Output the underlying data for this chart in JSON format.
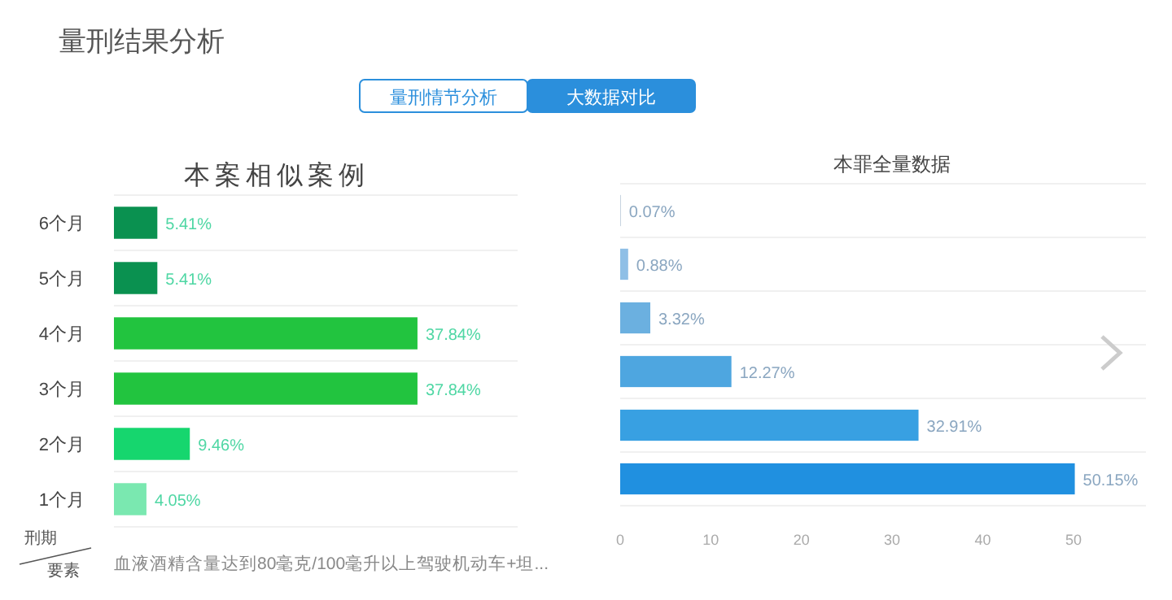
{
  "chart_data": [
    {
      "type": "other",
      "title": "量刑结果分析",
      "annotations": [
        "量刑情节分析",
        "大数据对比"
      ]
    },
    {
      "type": "bar",
      "orientation": "horizontal",
      "title": "本案相似案例",
      "ylabel": "刑期",
      "xlabel": "要素",
      "annotations": [
        "血液酒精含量达到80毫克/100毫升以上驾驶机动车+坦..."
      ],
      "categories": [
        "6个月",
        "5个月",
        "4个月",
        "3个月",
        "2个月",
        "1个月"
      ],
      "grid": "y",
      "series": [
        {
          "values": [
            5.41,
            5.41,
            37.84,
            37.84,
            9.46,
            4.05
          ],
          "colors": [
            "#0a9150",
            "#0a9150",
            "#22c43f",
            "#22c43f",
            "#16d66e",
            "#7ae8b0"
          ],
          "value_labels": [
            "5.41%",
            "5.41%",
            "37.84%",
            "37.84%",
            "9.46%",
            "4.05%"
          ]
        }
      ]
    },
    {
      "type": "bar",
      "orientation": "horizontal",
      "title": "本罪全量数据",
      "categories": [
        null,
        null,
        null,
        null,
        null,
        null
      ],
      "grid": "y",
      "xlim": [
        0,
        58
      ],
      "xticks": [
        0,
        10,
        20,
        30,
        40,
        50
      ],
      "series": [
        {
          "values": [
            0.07,
            0.88,
            3.32,
            12.27,
            32.91,
            50.15
          ],
          "colors": [
            "#b8c8d8",
            "#8fbfe6",
            "#6bb0e0",
            "#4ea6e0",
            "#38a0e2",
            "#2090e0"
          ],
          "value_labels": [
            "0.07%",
            "0.88%",
            "3.32%",
            "12.27%",
            "32.91%",
            "50.15%"
          ]
        }
      ]
    }
  ]
}
